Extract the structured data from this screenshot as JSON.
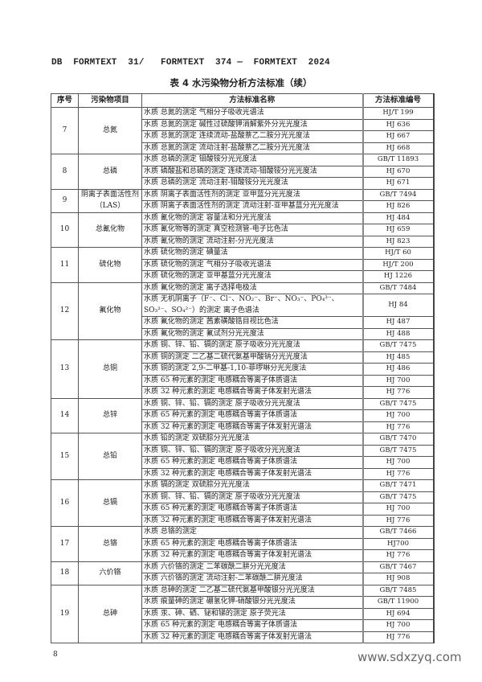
{
  "header_line": "DB  FORMTEXT  31/   FORMTEXT  374 —  FORMTEXT  2024",
  "table_title": "表 4  水污染物分析方法标准（续）",
  "columns": [
    "序号",
    "污染物项目",
    "方法标准名称",
    "方法标准编号"
  ],
  "groups": [
    {
      "no": "7",
      "pollutant": "总氮",
      "methods": [
        {
          "name": "水质  总氮的测定  气相分子吸收光谱法",
          "code": "HJ/T 199"
        },
        {
          "name": "水质  总氮的测定  碱性过硫酸钾消解紫外分光光度法",
          "code": "HJ 636"
        },
        {
          "name": "水质  总氮的测定  连续流动-盐酸萘乙二胺分光光度法",
          "code": "HJ 667"
        },
        {
          "name": "水质  总氮的测定  流动注射-盐酸萘乙二胺分光光度法",
          "code": "HJ 668"
        }
      ]
    },
    {
      "no": "8",
      "pollutant": "总磷",
      "methods": [
        {
          "name": "水质  总磷的测定  钼酸铵分光光度法",
          "code": "GB/T 11893"
        },
        {
          "name": "水质  磷酸盐和总磷的测定  连续流动-钼酸铵分光光度法",
          "code": "HJ 670"
        },
        {
          "name": "水质  总磷的测定  流动注射-钼酸铵分光光度法",
          "code": "HJ 671"
        }
      ]
    },
    {
      "no": "9",
      "pollutant": "阴离子表面活性剂（LAS）",
      "methods": [
        {
          "name": "水质  阴离子表面活性剂的测定  亚甲蓝分光光度法",
          "code": "GB/T 7494"
        },
        {
          "name": "水质  阴离子表面活性剂的测定 流动注射-亚甲基蓝分光光度法",
          "code": "HJ 826"
        }
      ]
    },
    {
      "no": "10",
      "pollutant": "总氰化物",
      "methods": [
        {
          "name": "水质  氰化物的测定  容量法和分光光度法",
          "code": "HJ 484"
        },
        {
          "name": "水质  氰化物等的测定  真空检测管-电子比色法",
          "code": "HJ 659"
        },
        {
          "name": "水质  氰化物的测定  流动注射-分光光度法",
          "code": "HJ 823"
        }
      ]
    },
    {
      "no": "11",
      "pollutant": "硫化物",
      "methods": [
        {
          "name": "水质  硫化物的测定  碘量法",
          "code": "HJ/T 60"
        },
        {
          "name": "水质  硫化物的测定  气相分子吸收光谱法",
          "code": "HJ/T 200"
        },
        {
          "name": "水质  硫化物的测定 亚甲基蓝分光光度法",
          "code": "HJ 1226"
        }
      ]
    },
    {
      "no": "12",
      "pollutant": "氟化物",
      "methods": [
        {
          "name": "水质  氟化物的测定  离子选择电极法",
          "code": "GB/T 7484"
        },
        {
          "name": "水质 无机阴离子（F⁻、Cl⁻、NO₂⁻、Br⁻、NO₃⁻、PO₄³⁻、SO₃²⁻、SO₄²⁻）的测定 离子色谱法",
          "code": "HJ 84"
        },
        {
          "name": "水质  氟化物的测定  茜素磺酸锆目视比色法",
          "code": "HJ 487"
        },
        {
          "name": "水质  氟化物的测定  氟试剂分光光度法",
          "code": "HJ 488"
        }
      ]
    },
    {
      "no": "13",
      "pollutant": "总铜",
      "methods": [
        {
          "name": "水质  铜、锌、铅、镉的测定  原子吸收分光光度法",
          "code": "GB/T 7475"
        },
        {
          "name": "水质  铜的测定  二乙基二硫代氨基甲酸钠分光光度法",
          "code": "HJ 485"
        },
        {
          "name": "水质  铜的测定  2,9-二甲基-1,10-菲啰啉分光光度法",
          "code": "HJ 486"
        },
        {
          "name": "水质  65 种元素的测定  电感耦合等离子体质谱法",
          "code": "HJ 700"
        },
        {
          "name": "水质  32 种元素的测定  电感耦合等离子体发射光谱法",
          "code": "HJ 776"
        }
      ]
    },
    {
      "no": "14",
      "pollutant": "总锌",
      "methods": [
        {
          "name": "水质  铜、锌、铅、镉的测定  原子吸收分光光度法",
          "code": "GB/T 7475"
        },
        {
          "name": "水质  65 种元素的测定  电感耦合等离子体质谱法",
          "code": "HJ 700"
        },
        {
          "name": "水质  32 种元素的测定  电感耦合等离子体发射光谱法",
          "code": "HJ 776"
        }
      ]
    },
    {
      "no": "15",
      "pollutant": "总铅",
      "methods": [
        {
          "name": "水质  铅的测定  双硫腙分光光度法",
          "code": "GB/T 7470"
        },
        {
          "name": "水质  铜、锌、铅、镉的测定  原子吸收分光光度法",
          "code": "GB/T 7475"
        },
        {
          "name": "水质  65 种元素的测定  电感耦合等离子体质谱法",
          "code": "HJ 700"
        },
        {
          "name": "水质  32 种元素的测定  电感耦合等离子体发射光谱法",
          "code": "HJ 776"
        }
      ]
    },
    {
      "no": "16",
      "pollutant": "总镉",
      "methods": [
        {
          "name": "水质  镉的测定  双硫腙分光光度法",
          "code": "GB/T 7471"
        },
        {
          "name": "水质  铜、锌、铅、镉的测定  原子吸收分光光度法",
          "code": "GB/T 7475"
        },
        {
          "name": "水质  65 种元素的测定  电感耦合等离子体质谱法",
          "code": "HJ 700"
        },
        {
          "name": "水质  32 种元素的测定  电感耦合等离子体发射光谱法",
          "code": "HJ 776"
        }
      ]
    },
    {
      "no": "17",
      "pollutant": "总铬",
      "methods": [
        {
          "name": "水质  总铬的测定",
          "code": "GB/T 7466"
        },
        {
          "name": "水质  65 种元素的测定  电感耦合等离子体质谱法",
          "code": "HJ700"
        },
        {
          "name": "水质  32 种元素的测定  电感耦合等离子体发射光谱法",
          "code": "HJ 776"
        }
      ]
    },
    {
      "no": "18",
      "pollutant": "六价铬",
      "methods": [
        {
          "name": "水质  六价铬的测定  二苯碳酰二肼分光光度法",
          "code": "GB/T 7467"
        },
        {
          "name": "水质  六价铬的测定  流动注射-二苯碳酰二肼光度法",
          "code": "HJ 908"
        }
      ]
    },
    {
      "no": "19",
      "pollutant": "总砷",
      "methods": [
        {
          "name": "水质  总砷的测定  二乙基二硫代氨基甲酸银分光光度法",
          "code": "GB/T 7485"
        },
        {
          "name": "水质  痕量砷的测定  硼氢化钾-硝酸银分光光度法",
          "code": "GB/T 11900"
        },
        {
          "name": "水质  汞、砷、硒、铋和锑的测定  原子荧光法",
          "code": "HJ 694"
        },
        {
          "name": "水质  65 种元素的测定  电感耦合等离子体质谱法",
          "code": "HJ 700"
        },
        {
          "name": "水质  32 种元素的测定  电感耦合等离子体发射光谱法",
          "code": "HJ 776"
        }
      ]
    }
  ],
  "page_number": "8",
  "watermark": "www.sdxzyq.com"
}
